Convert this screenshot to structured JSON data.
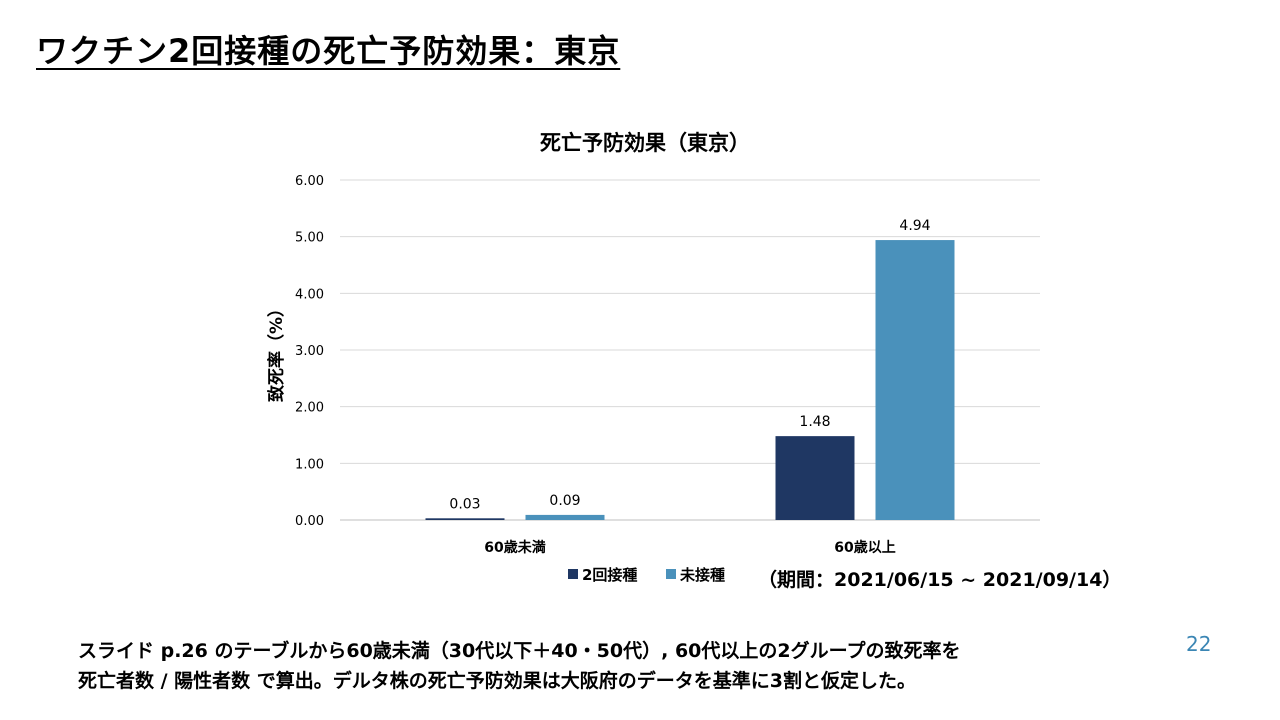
{
  "slide": {
    "title": "ワクチン2回接種の死亡予防効果：東京",
    "footnote_line1": "スライド p.26 のテーブルから60歳未満（30代以下＋40・50代）, 60代以上の2グループの致死率を",
    "footnote_line2": "死亡者数 / 陽性者数 で算出。デルタ株の死亡予防効果は大阪府のデータを基準に3割と仮定した。",
    "page_number": "22",
    "period_label": "（期間：2021/06/15 ~ 2021/09/14）"
  },
  "chart_data": {
    "type": "bar",
    "title": "死亡予防効果（東京）",
    "ylabel": "致死率（%）",
    "xlabel": "",
    "categories": [
      "60歳未満",
      "60歳以上"
    ],
    "series": [
      {
        "name": "2回接種",
        "values": [
          0.03,
          1.48
        ],
        "value_labels": [
          "0.03",
          "1.48"
        ],
        "color": "#1f3763"
      },
      {
        "name": "未接種",
        "values": [
          0.09,
          4.94
        ],
        "value_labels": [
          "0.09",
          "4.94"
        ],
        "color": "#4a91bb"
      }
    ],
    "ylim": [
      0,
      6
    ],
    "yticks": [
      0,
      1,
      2,
      3,
      4,
      5,
      6
    ],
    "ytick_labels": [
      "0.00",
      "1.00",
      "2.00",
      "3.00",
      "4.00",
      "5.00",
      "6.00"
    ],
    "grid": true,
    "legend_position": "bottom"
  }
}
